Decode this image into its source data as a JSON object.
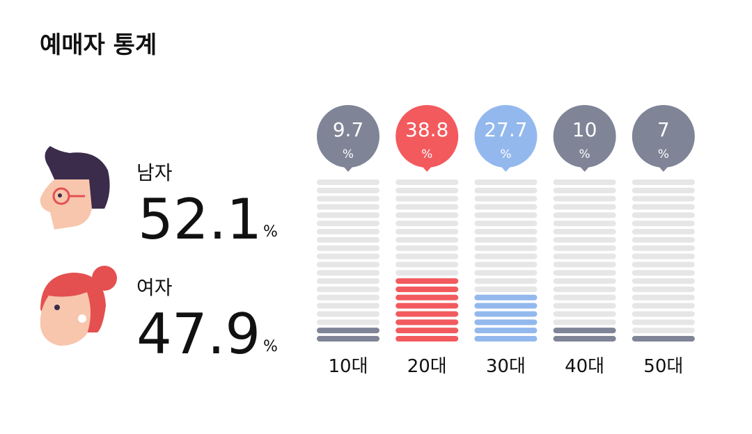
{
  "title": "예매자 통계",
  "gender": [
    {
      "label": "남자",
      "value": 52.1,
      "unit": "%"
    },
    {
      "label": "여자",
      "value": 47.9,
      "unit": "%"
    }
  ],
  "chart_data": {
    "type": "bar",
    "categories": [
      "10대",
      "20대",
      "30대",
      "40대",
      "50대"
    ],
    "values": [
      9.7,
      38.8,
      27.7,
      10,
      7
    ],
    "value_unit": "%",
    "colors": [
      "#7f8496",
      "#f25a5e",
      "#93b8ee",
      "#7f8496",
      "#7f8496"
    ],
    "ylim": [
      0,
      100
    ]
  }
}
